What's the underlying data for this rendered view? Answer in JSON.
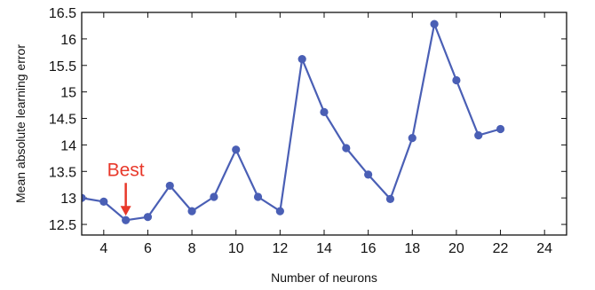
{
  "chart_data": {
    "type": "line",
    "title": "",
    "xlabel": "Number of neurons",
    "ylabel": "Mean absolute learning error",
    "xlim": [
      3,
      25
    ],
    "ylim": [
      12.3,
      16.5
    ],
    "xticks": [
      4,
      6,
      8,
      10,
      12,
      14,
      16,
      18,
      20,
      22,
      24
    ],
    "yticks": [
      12.5,
      13,
      13.5,
      14,
      14.5,
      15,
      15.5,
      16,
      16.5
    ],
    "xtick_labels": [
      "4",
      "6",
      "8",
      "10",
      "12",
      "14",
      "16",
      "18",
      "20",
      "22",
      "24"
    ],
    "ytick_labels": [
      "12.5",
      "13",
      "13.5",
      "14",
      "14.5",
      "15",
      "15.5",
      "16",
      "16.5"
    ],
    "grid": false,
    "series": [
      {
        "color": "#4a5fb5",
        "x": [
          3,
          4,
          5,
          6,
          7,
          8,
          9,
          10,
          11,
          12,
          13,
          14,
          15,
          16,
          17,
          18,
          19,
          20,
          21,
          22
        ],
        "y": [
          13.0,
          12.93,
          12.58,
          12.64,
          13.23,
          12.75,
          13.02,
          13.91,
          13.02,
          12.75,
          15.62,
          14.62,
          13.94,
          13.44,
          12.98,
          14.13,
          16.28,
          15.22,
          14.18,
          14.3
        ]
      }
    ],
    "annotations": [
      {
        "text": "Best",
        "color": "#e8382a",
        "x": 5,
        "y": 12.58
      }
    ]
  }
}
